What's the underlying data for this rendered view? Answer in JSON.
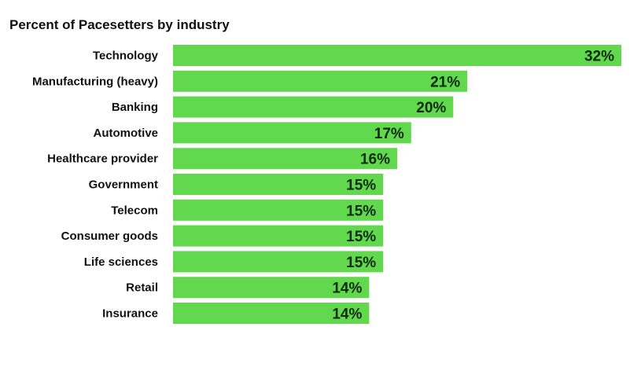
{
  "chart_data": {
    "type": "bar",
    "orientation": "horizontal",
    "title": "Percent of Pacesetters by industry",
    "categories": [
      "Technology",
      "Manufacturing (heavy)",
      "Banking",
      "Automotive",
      "Healthcare provider",
      "Government",
      "Telecom",
      "Consumer goods",
      "Life sciences",
      "Retail",
      "Insurance"
    ],
    "values": [
      32,
      21,
      20,
      17,
      16,
      15,
      15,
      15,
      15,
      14,
      14
    ],
    "value_labels": [
      "32%",
      "21%",
      "20%",
      "17%",
      "16%",
      "15%",
      "15%",
      "15%",
      "15%",
      "14%",
      "14%"
    ],
    "unit": "%",
    "xlim": [
      0,
      32
    ],
    "grid": false,
    "legend": "none",
    "bar_color": "#62d84e",
    "label_color": "#0d2b0d"
  }
}
